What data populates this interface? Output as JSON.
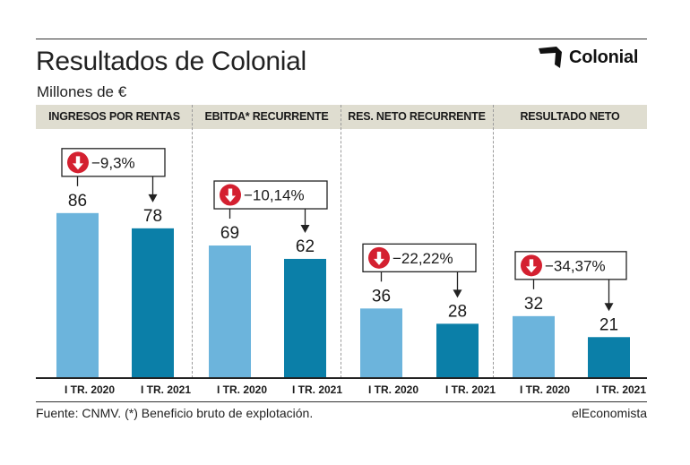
{
  "title": "Resultados de Colonial",
  "subtitle": "Millones de €",
  "logo_text": "Colonial",
  "source": "Fuente: CNMV. (*) Beneficio bruto de explotación.",
  "brand": "elEconomista",
  "colors": {
    "bar_2020": "#6cb4dc",
    "bar_2021": "#0b7fa8",
    "header_band": "#dfddd0",
    "down_icon": "#d42030"
  },
  "chart_data": {
    "type": "bar",
    "categories": [
      "I TR. 2020",
      "I TR. 2021"
    ],
    "ylim": [
      0,
      100
    ],
    "panels": [
      {
        "title": "INGRESOS POR RENTAS",
        "values": [
          86,
          78
        ],
        "value_labels": [
          "86",
          "78"
        ],
        "change": "−9,3%"
      },
      {
        "title": "EBITDA* RECURRENTE",
        "values": [
          69,
          62
        ],
        "value_labels": [
          "69",
          "62"
        ],
        "change": "−10,14%"
      },
      {
        "title": "RES. NETO RECURRENTE",
        "values": [
          36,
          28
        ],
        "value_labels": [
          "36",
          "28"
        ],
        "change": "−22,22%"
      },
      {
        "title": "RESULTADO NETO",
        "values": [
          32,
          21
        ],
        "value_labels": [
          "32",
          "21"
        ],
        "change": "−34,37%"
      }
    ]
  }
}
